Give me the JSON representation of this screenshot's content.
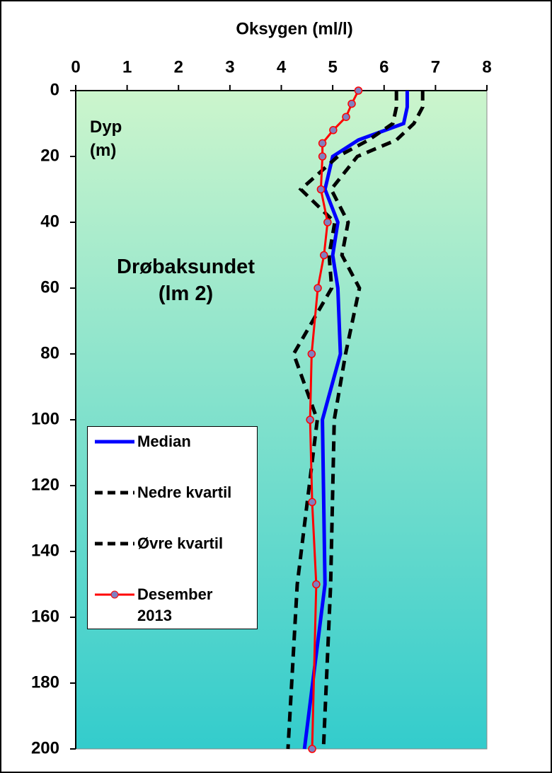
{
  "chart_data": {
    "type": "line",
    "orientation": "vertical",
    "title": "Oksygen (ml/l)",
    "y_label": "Dyp (m)",
    "annotation": "Drøbaksundet (lm 2)",
    "xlim": [
      0,
      8
    ],
    "xticks": [
      0,
      1,
      2,
      3,
      4,
      5,
      6,
      7,
      8
    ],
    "ylim": [
      0,
      200
    ],
    "yticks": [
      0,
      20,
      40,
      60,
      80,
      100,
      120,
      140,
      160,
      180,
      200
    ],
    "y_inverted": true,
    "series": [
      {
        "name": "Median",
        "color": "#0000ff",
        "dashed": false,
        "markers": false,
        "width": 5,
        "y": [
          0,
          5,
          10,
          15,
          20,
          30,
          40,
          50,
          60,
          80,
          100,
          150,
          200
        ],
        "values": [
          6.45,
          6.45,
          6.38,
          5.5,
          5.0,
          4.85,
          5.1,
          5.0,
          5.1,
          5.15,
          4.8,
          4.85,
          4.45
        ]
      },
      {
        "name": "Nedre kvartil",
        "color": "#000000",
        "dashed": true,
        "markers": false,
        "width": 5,
        "y": [
          0,
          5,
          10,
          15,
          20,
          30,
          40,
          50,
          60,
          80,
          100,
          150,
          200
        ],
        "values": [
          6.24,
          6.24,
          6.17,
          5.7,
          5.1,
          4.38,
          5.04,
          4.93,
          4.98,
          4.24,
          4.7,
          4.31,
          4.13
        ]
      },
      {
        "name": "Øvre kvartil",
        "color": "#000000",
        "dashed": true,
        "markers": false,
        "width": 5,
        "y": [
          0,
          5,
          10,
          15,
          20,
          30,
          40,
          50,
          60,
          80,
          100,
          150,
          200
        ],
        "values": [
          6.75,
          6.75,
          6.58,
          6.24,
          5.48,
          4.97,
          5.3,
          5.18,
          5.52,
          5.25,
          5.03,
          4.96,
          4.82
        ]
      },
      {
        "name": "Desember 2013",
        "color": "#ff0000",
        "dashed": false,
        "markers": true,
        "width": 3,
        "y": [
          0,
          4,
          8,
          12,
          16,
          20,
          30,
          40,
          50,
          60,
          80,
          100,
          125,
          150,
          200
        ],
        "values": [
          5.5,
          5.37,
          5.26,
          5.01,
          4.8,
          4.8,
          4.77,
          4.9,
          4.83,
          4.71,
          4.59,
          4.56,
          4.6,
          4.68,
          4.6
        ]
      }
    ]
  }
}
